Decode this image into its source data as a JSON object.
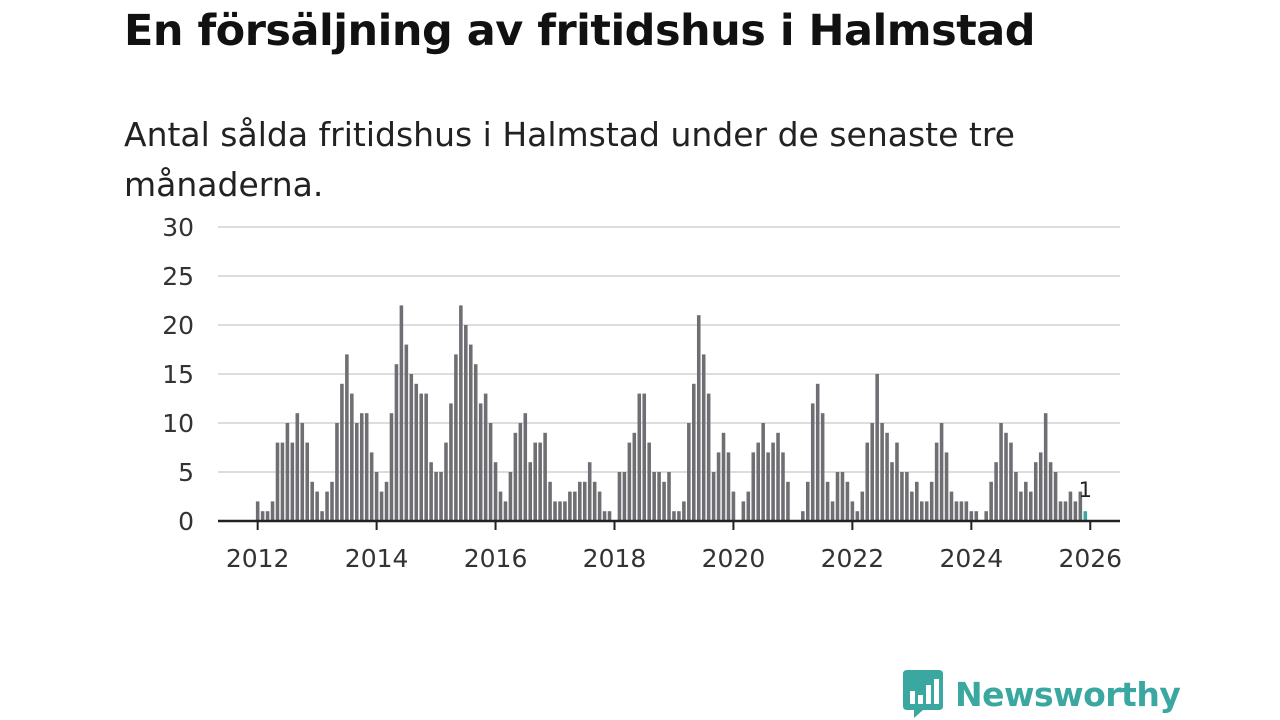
{
  "chart_data": {
    "type": "bar",
    "title": "En försäljning av fritidshus i Halmstad",
    "subtitle": "Antal sålda fritidshus i Halmstad under de senaste tre månaderna.",
    "xlabel": "",
    "ylabel": "",
    "ylim": [
      0,
      30
    ],
    "yticks": [
      0,
      5,
      10,
      15,
      20,
      25,
      30
    ],
    "xlim": [
      2011.333,
      2026.5
    ],
    "xticks": [
      2012,
      2014,
      2016,
      2018,
      2020,
      2022,
      2024,
      2026
    ],
    "grid": true,
    "bar_color": "#6f6e73",
    "highlight_color": "#3aa7a0",
    "start_year": 2012,
    "start_month": 1,
    "values": [
      2,
      1,
      1,
      2,
      8,
      8,
      10,
      8,
      11,
      10,
      8,
      4,
      3,
      1,
      3,
      4,
      10,
      14,
      17,
      13,
      10,
      11,
      11,
      7,
      5,
      3,
      4,
      11,
      16,
      22,
      18,
      15,
      14,
      13,
      13,
      6,
      5,
      5,
      8,
      12,
      17,
      22,
      20,
      18,
      16,
      12,
      13,
      10,
      6,
      3,
      2,
      5,
      9,
      10,
      11,
      6,
      8,
      8,
      9,
      4,
      2,
      2,
      2,
      3,
      3,
      4,
      4,
      6,
      4,
      3,
      1,
      1,
      0,
      5,
      5,
      8,
      9,
      13,
      13,
      8,
      5,
      5,
      4,
      5,
      1,
      1,
      2,
      10,
      14,
      21,
      17,
      13,
      5,
      7,
      9,
      7,
      3,
      0,
      2,
      3,
      7,
      8,
      10,
      7,
      8,
      9,
      7,
      4,
      0,
      0,
      1,
      4,
      12,
      14,
      11,
      4,
      2,
      5,
      5,
      4,
      2,
      1,
      3,
      8,
      10,
      15,
      10,
      9,
      6,
      8,
      5,
      5,
      3,
      4,
      2,
      2,
      4,
      8,
      10,
      7,
      3,
      2,
      2,
      2,
      1,
      1,
      0,
      1,
      4,
      6,
      10,
      9,
      8,
      5,
      3,
      4,
      3,
      6,
      7,
      11,
      6,
      5,
      2,
      2,
      3,
      2,
      3,
      1
    ],
    "annotations": [
      {
        "label": "1",
        "target": "last"
      }
    ]
  },
  "branding": {
    "logo_text": "Newsworthy",
    "logo_icon": "newsworthy-chart-bubble-icon",
    "accent_color": "#3aa7a0"
  }
}
